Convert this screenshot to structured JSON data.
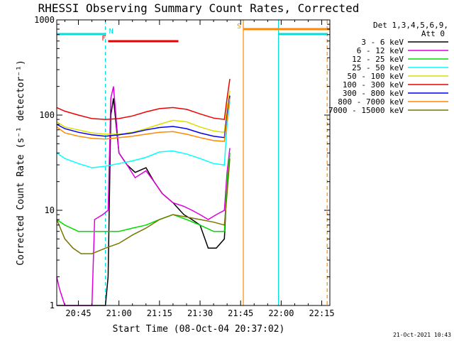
{
  "chart_data": {
    "type": "line",
    "title": "RHESSI Observing Summary Count Rates, Corrected",
    "xlabel": "Start Time (08-Oct-04 20:37:02)",
    "ylabel": "Corrected Count Rate (s⁻¹ detector⁻¹)",
    "yscale": "log",
    "ylim": [
      1,
      1000
    ],
    "xlim_minutes_after_2030": [
      7,
      108
    ],
    "x_units": "minutes after 20:30 UT",
    "x_ticks": [
      {
        "value": 15,
        "label": "20:45"
      },
      {
        "value": 30,
        "label": "21:00"
      },
      {
        "value": 45,
        "label": "21:15"
      },
      {
        "value": 60,
        "label": "21:30"
      },
      {
        "value": 75,
        "label": "21:45"
      },
      {
        "value": 90,
        "label": "22:00"
      },
      {
        "value": 105,
        "label": "22:15"
      }
    ],
    "y_ticks": [
      {
        "value": 1,
        "label": "1"
      },
      {
        "value": 10,
        "label": "10"
      },
      {
        "value": 100,
        "label": "100"
      },
      {
        "value": 1000,
        "label": "1000"
      }
    ],
    "legend_header": [
      "Det 1,3,4,5,6,9,",
      "Att 0"
    ],
    "legend_placement": "top-right",
    "series": [
      {
        "name": "3 - 6 keV",
        "color": "#000000",
        "x": [
          7,
          12,
          18,
          22,
          25,
          26,
          27,
          28,
          30,
          33,
          36,
          40,
          43,
          46,
          50,
          54,
          57,
          60,
          63,
          66,
          69,
          70,
          71
        ],
        "y": [
          1,
          1,
          1,
          1,
          1,
          2,
          100,
          150,
          40,
          30,
          25,
          28,
          20,
          15,
          12,
          9,
          8,
          7,
          4,
          4,
          5,
          20,
          40
        ]
      },
      {
        "name": "6 - 12 keV",
        "color": "#dd00dd",
        "x": [
          7,
          8,
          10,
          15,
          20,
          21,
          24,
          26,
          27,
          28,
          30,
          33,
          36,
          40,
          43,
          46,
          50,
          54,
          57,
          60,
          63,
          66,
          69,
          70,
          71
        ],
        "y": [
          2,
          1.5,
          1,
          1,
          1,
          8,
          9,
          10,
          150,
          200,
          40,
          30,
          22,
          26,
          20,
          15,
          12,
          11,
          10,
          9,
          8,
          9,
          10,
          25,
          45
        ]
      },
      {
        "name": "12 - 25 keV",
        "color": "#00dd00",
        "x": [
          7,
          10,
          15,
          20,
          25,
          30,
          35,
          40,
          45,
          50,
          55,
          60,
          65,
          69,
          70,
          71
        ],
        "y": [
          8,
          7,
          6,
          6,
          6,
          6,
          6.5,
          7,
          8,
          9,
          8,
          7,
          6,
          6,
          20,
          40
        ]
      },
      {
        "name": "25 - 50 keV",
        "color": "#00ffff",
        "x": [
          7,
          10,
          15,
          20,
          25,
          30,
          35,
          40,
          45,
          50,
          55,
          60,
          65,
          69,
          70,
          71
        ],
        "y": [
          40,
          35,
          31,
          28,
          29,
          31,
          33,
          36,
          41,
          42,
          39,
          35,
          31,
          30,
          80,
          140
        ]
      },
      {
        "name": "50 - 100 keV",
        "color": "#dddd00",
        "x": [
          7,
          10,
          15,
          20,
          25,
          30,
          35,
          40,
          45,
          50,
          55,
          60,
          65,
          69,
          70,
          71
        ],
        "y": [
          85,
          75,
          70,
          65,
          63,
          63,
          66,
          72,
          80,
          88,
          85,
          75,
          68,
          66,
          120,
          180
        ]
      },
      {
        "name": "100 - 300 keV",
        "color": "#ee0000",
        "x": [
          7,
          10,
          15,
          20,
          25,
          30,
          35,
          40,
          45,
          50,
          55,
          60,
          65,
          69,
          70,
          71
        ],
        "y": [
          120,
          110,
          100,
          92,
          90,
          92,
          98,
          108,
          117,
          120,
          115,
          103,
          93,
          90,
          150,
          240
        ]
      },
      {
        "name": "300 - 800 keV",
        "color": "#0000ee",
        "x": [
          7,
          10,
          15,
          20,
          25,
          30,
          35,
          40,
          45,
          50,
          55,
          60,
          65,
          69,
          70,
          71
        ],
        "y": [
          80,
          72,
          66,
          62,
          60,
          62,
          65,
          70,
          74,
          76,
          72,
          65,
          60,
          58,
          100,
          160
        ]
      },
      {
        "name": "800 - 7000 keV",
        "color": "#ff8800",
        "x": [
          7,
          10,
          15,
          20,
          25,
          30,
          35,
          40,
          45,
          50,
          55,
          60,
          65,
          69,
          70,
          71
        ],
        "y": [
          75,
          65,
          60,
          57,
          56,
          58,
          60,
          63,
          66,
          67,
          63,
          58,
          54,
          53,
          90,
          150
        ]
      },
      {
        "name": "7000 - 15000 keV",
        "color": "#777700",
        "x": [
          7,
          10,
          13,
          16,
          20,
          25,
          30,
          35,
          40,
          45,
          50,
          55,
          60,
          65,
          69,
          70,
          71
        ],
        "y": [
          8,
          5,
          4,
          3.5,
          3.5,
          4,
          4.5,
          5.5,
          6.5,
          8,
          9,
          8.5,
          8,
          7.5,
          7,
          15,
          35
        ]
      }
    ],
    "annotations": {
      "flag_bars": [
        {
          "label": "N",
          "color": "#00dddd",
          "x_start": 7,
          "x_end": 25
        },
        {
          "label": "F",
          "color": "#ee0000",
          "x_start": 26,
          "x_end": 52
        },
        {
          "label": "S",
          "color": "#ff8800",
          "x_start": 76,
          "x_end": 108
        },
        {
          "label": "",
          "color": "#00dddd",
          "x_start": 89,
          "x_end": 107
        }
      ],
      "vlines": [
        {
          "x": 25,
          "color": "#00dddd",
          "style": "dashed"
        },
        {
          "x": 76,
          "color": "#ff8800",
          "style": "solid"
        },
        {
          "x": 89,
          "color": "#00dddd",
          "style": "solid"
        },
        {
          "x": 107,
          "color": "#ff8800",
          "style": "dashed"
        }
      ]
    }
  },
  "timestamp": "21-Oct-2021 10:43"
}
